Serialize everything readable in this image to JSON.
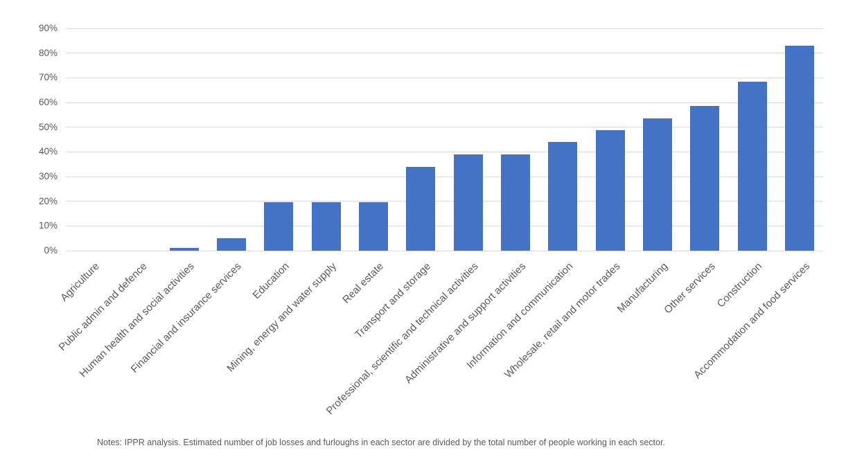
{
  "chart_data": {
    "type": "bar",
    "title": "",
    "xlabel": "",
    "ylabel": "",
    "categories": [
      "Agriculture",
      "Public admin and defence",
      "Human health and social activities",
      "Financial and insurance services",
      "Education",
      "Mining, energy and water supply",
      "Real estate",
      "Transport and storage",
      "Professional, scientific and technical activities",
      "Administrative and support activities",
      "Information and communication",
      "Wholesale, retail and motor trades",
      "Manufacturing",
      "Other services",
      "Construction",
      "Accommodation and food services"
    ],
    "values": [
      0,
      0,
      1,
      5,
      19.5,
      19.5,
      19.5,
      34,
      39,
      39,
      44,
      48.7,
      53.5,
      58.5,
      68.5,
      83
    ],
    "ylim": [
      0,
      90
    ],
    "y_tick_labels": [
      "0%",
      "10%",
      "20%",
      "30%",
      "40%",
      "50%",
      "60%",
      "70%",
      "80%",
      "90%"
    ],
    "grid": true,
    "legend": "none",
    "bar_color": "#4472c4"
  },
  "colors": {
    "bar": "#4472c4",
    "gridline": "#d9d9d9",
    "axis_text": "#595959"
  },
  "notes": "Notes: IPPR analysis. Estimated number of job losses and furloughs in each sector are divided by the total number of people working in each sector."
}
